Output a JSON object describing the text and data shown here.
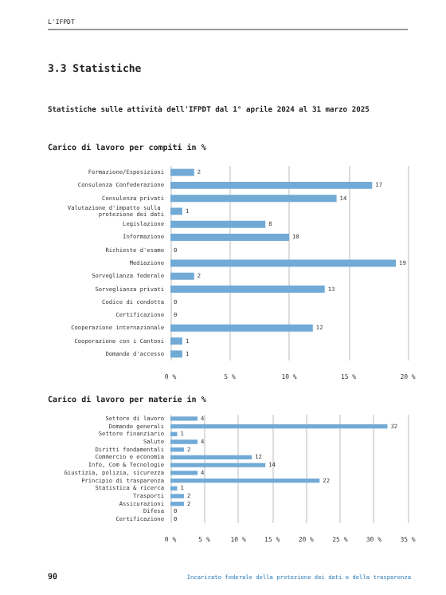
{
  "chart_data": [
    {
      "type": "bar",
      "orientation": "horizontal",
      "title": "Carico di lavoro per compiti in %",
      "annotations": [
        "L'IFPDT",
        "3.3 Statistiche",
        "Statistiche sulle attività dell'IFPDT dal 1° aprile 2024 al 31 marzo 2025"
      ],
      "categories": [
        "Formazione/Esposizioni",
        "Consulenza Confederazione",
        "Consulenza privati",
        "Valutazione d'impatto sulla protezione dei dati",
        "Legislazione",
        "Informazione",
        "Richieste d'esame",
        "Mediazione",
        "Sorveglianza federale",
        "Sorveglianza privati",
        "Codice di condotta",
        "Certificazione",
        "Cooperazione internazionale",
        "Cooperazione con i Cantoni",
        "Domande d'accesso"
      ],
      "values": [
        2,
        17,
        14,
        1,
        8,
        10,
        0,
        19,
        2,
        13,
        0,
        0,
        12,
        1,
        1
      ],
      "color": "#72aad6",
      "data_labels": true,
      "xlim": [
        0,
        20
      ],
      "xticks": [
        {
          "value": 0,
          "label": "0 %"
        },
        {
          "value": 5,
          "label": "5 %"
        },
        {
          "value": 10,
          "label": "10 %"
        },
        {
          "value": 15,
          "label": "15 %"
        },
        {
          "value": 20,
          "label": "20 %"
        }
      ],
      "grid": "x"
    },
    {
      "type": "bar",
      "orientation": "horizontal",
      "title": "Carico di lavoro per materie in %",
      "annotations": [
        "90",
        "Incaricato federale della protezione dei dati e della trasparenza"
      ],
      "categories": [
        "Settore di lavoro",
        "Domande generali",
        "Settore finanziario",
        "Salute",
        "Diritti fondamentali",
        "Commercio e economia",
        "Info, Com & Tecnologie",
        "Giustizia, polizia, sicurezza",
        "Principio di trasparenza",
        "Statistica & ricerca",
        "Trasporti",
        "Assicurazioni",
        "Difesa",
        "Certificazione"
      ],
      "values": [
        4,
        32,
        1,
        4,
        2,
        12,
        14,
        4,
        22,
        1,
        2,
        2,
        0,
        0
      ],
      "color": "#72aad6",
      "data_labels": true,
      "xlim": [
        0,
        35
      ],
      "xticks": [
        {
          "value": 0,
          "label": "0 %"
        },
        {
          "value": 5,
          "label": "5 %"
        },
        {
          "value": 10,
          "label": "10 %"
        },
        {
          "value": 15,
          "label": "15 %"
        },
        {
          "value": 20,
          "label": "20 %"
        },
        {
          "value": 25,
          "label": "25 %"
        },
        {
          "value": 30,
          "label": "30 %"
        },
        {
          "value": 35,
          "label": "35 %"
        }
      ],
      "grid": "x"
    }
  ]
}
